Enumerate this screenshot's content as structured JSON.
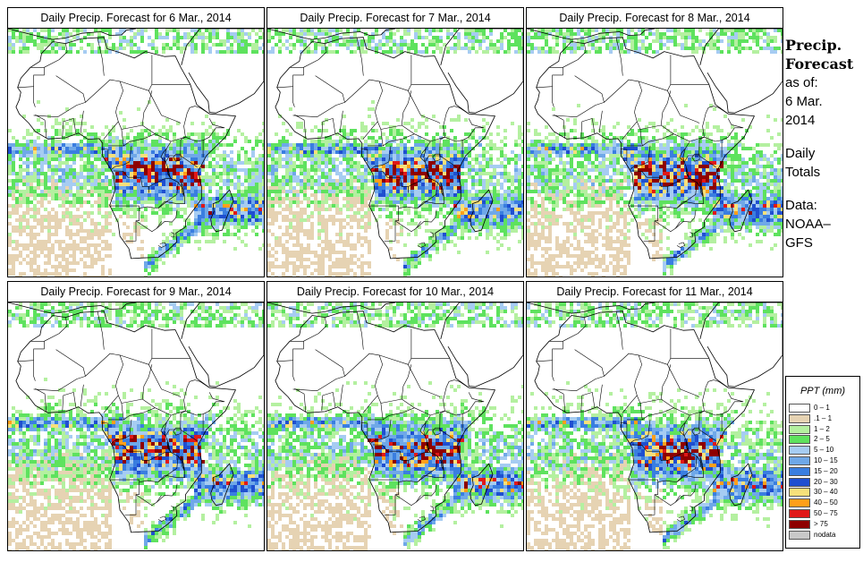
{
  "panels": [
    {
      "title": "Daily Precip. Forecast for  6 Mar., 2014",
      "day": 6
    },
    {
      "title": "Daily Precip. Forecast for  7 Mar., 2014",
      "day": 7
    },
    {
      "title": "Daily Precip. Forecast for  8 Mar., 2014",
      "day": 8
    },
    {
      "title": "Daily Precip. Forecast for  9 Mar., 2014",
      "day": 9
    },
    {
      "title": "Daily Precip. Forecast for  10 Mar., 2014",
      "day": 10
    },
    {
      "title": "Daily Precip. Forecast for  11 Mar., 2014",
      "day": 11
    }
  ],
  "sidebar": {
    "title_line1": "Precip.",
    "title_line2": "Forecast",
    "asof_label": "as of:",
    "date_line1": "6 Mar.",
    "date_line2": "2014",
    "totals_line1": "Daily",
    "totals_line2": "Totals",
    "data_label": "Data:",
    "source_line1": "NOAA–",
    "source_line2": "GFS"
  },
  "legend": {
    "title": "PPT (mm)",
    "items": [
      {
        "label": "0 – 1",
        "color": "#ffffff"
      },
      {
        "label": ".1 – 1",
        "color": "#e6d3b3"
      },
      {
        "label": "1 – 2",
        "color": "#b4f0a0"
      },
      {
        "label": "2 – 5",
        "color": "#5ee25e"
      },
      {
        "label": "5 – 10",
        "color": "#a6ccf2"
      },
      {
        "label": "10 – 15",
        "color": "#6fa8e8"
      },
      {
        "label": "15 – 20",
        "color": "#3a7ee0"
      },
      {
        "label": "20 – 30",
        "color": "#1f4fd0"
      },
      {
        "label": "30 – 40",
        "color": "#f7e07a"
      },
      {
        "label": "40 – 50",
        "color": "#ff9f1a"
      },
      {
        "label": "50 – 75",
        "color": "#e01818"
      },
      {
        "label": "> 75",
        "color": "#8e0000"
      },
      {
        "label": "nodata",
        "color": "#c8c8c8"
      }
    ]
  }
}
